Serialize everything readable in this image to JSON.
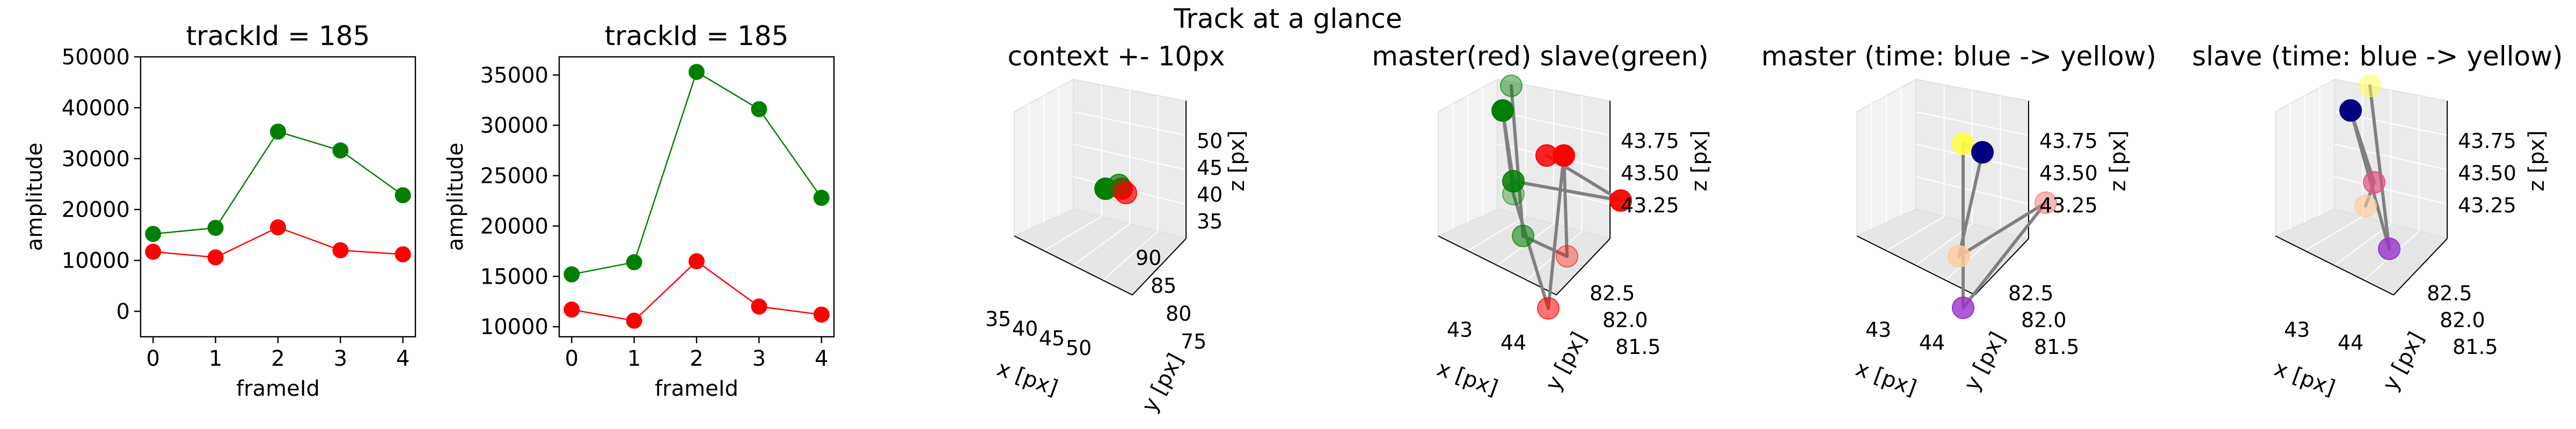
{
  "figure": {
    "suptitle": "Track at a glance"
  },
  "chart_data": [
    {
      "type": "line",
      "title": "trackId = 185",
      "xlabel": "frameId",
      "ylabel": "amplitude",
      "xlim": [
        -0.2,
        4.2
      ],
      "ylim": [
        -5000,
        50000
      ],
      "xticks": [
        0,
        1,
        2,
        3,
        4
      ],
      "yticks": [
        0,
        10000,
        20000,
        30000,
        40000,
        50000
      ],
      "x": [
        0,
        1,
        2,
        3,
        4
      ],
      "series": [
        {
          "values": [
            15200,
            16400,
            35300,
            31600,
            22800
          ],
          "color": "#008000"
        },
        {
          "values": [
            11700,
            10600,
            16500,
            12000,
            11200
          ],
          "color": "#ff0000"
        }
      ]
    },
    {
      "type": "line",
      "title": "trackId = 185",
      "xlabel": "frameId",
      "ylabel": "amplitude",
      "xlim": [
        -0.2,
        4.2
      ],
      "ylim": [
        9000,
        36800
      ],
      "xticks": [
        0,
        1,
        2,
        3,
        4
      ],
      "yticks": [
        10000,
        15000,
        20000,
        25000,
        30000,
        35000
      ],
      "x": [
        0,
        1,
        2,
        3,
        4
      ],
      "series": [
        {
          "values": [
            15200,
            16400,
            35300,
            31600,
            22800
          ],
          "color": "#008000"
        },
        {
          "values": [
            11700,
            10600,
            16500,
            12000,
            11200
          ],
          "color": "#ff0000"
        }
      ]
    },
    {
      "type": "scatter",
      "subtype": "3d",
      "title": "context +- 10px",
      "xlabel": "x [px]",
      "ylabel": "y [px]",
      "zlabel": "z [px]",
      "xticks": [
        "35",
        "40",
        "45",
        "50"
      ],
      "yticks": [
        "75",
        "80",
        "85",
        "90"
      ],
      "zticks": [
        "35",
        "40",
        "45",
        "50"
      ],
      "points": [
        {
          "color": "#008000",
          "opacity": 1.0
        },
        {
          "color": "#ff0000",
          "opacity": 1.0
        },
        {
          "color": "#008000",
          "opacity": 0.7
        },
        {
          "color": "#ff0000",
          "opacity": 0.7
        }
      ]
    },
    {
      "type": "scatter",
      "subtype": "3d",
      "title": "master(red) slave(green)",
      "xlabel": "x [px]",
      "ylabel": "y [px]",
      "zlabel": "z [px]",
      "xticks": [
        "43",
        "44"
      ],
      "yticks": [
        "81.5",
        "82.0",
        "82.5"
      ],
      "zticks": [
        "43.25",
        "43.50",
        "43.75"
      ],
      "points": [
        {
          "color": "#008000",
          "opacity": 0.45
        },
        {
          "color": "#008000",
          "opacity": 1.0
        },
        {
          "color": "#008000",
          "opacity": 0.85
        },
        {
          "color": "#008000",
          "opacity": 0.35
        },
        {
          "color": "#008000",
          "opacity": 0.55
        },
        {
          "color": "#ff0000",
          "opacity": 0.85
        },
        {
          "color": "#ff0000",
          "opacity": 1.0
        },
        {
          "color": "#ff0000",
          "opacity": 0.35
        },
        {
          "color": "#ff0000",
          "opacity": 0.55
        },
        {
          "color": "#ff0000",
          "opacity": 0.95
        }
      ]
    },
    {
      "type": "scatter",
      "subtype": "3d",
      "title": "master (time: blue -> yellow)",
      "xlabel": "x [px]",
      "ylabel": "y [px]",
      "zlabel": "z [px]",
      "xticks": [
        "43",
        "44"
      ],
      "yticks": [
        "81.5",
        "82.0",
        "82.5"
      ],
      "zticks": [
        "43.25",
        "43.50",
        "43.75"
      ],
      "points": [
        {
          "color": "#ffff44",
          "opacity": 0.9
        },
        {
          "color": "#000080",
          "opacity": 1.0
        },
        {
          "color": "#f08080",
          "opacity": 0.55
        },
        {
          "color": "#ffcc99",
          "opacity": 0.8
        },
        {
          "color": "#9933cc",
          "opacity": 0.8
        }
      ]
    },
    {
      "type": "scatter",
      "subtype": "3d",
      "title": "slave (time: blue -> yellow)",
      "xlabel": "x [px]",
      "ylabel": "y [px]",
      "zlabel": "z [px]",
      "xticks": [
        "43",
        "44"
      ],
      "yticks": [
        "81.5",
        "82.0",
        "82.5"
      ],
      "zticks": [
        "43.25",
        "43.50",
        "43.75"
      ],
      "points": [
        {
          "color": "#ffff44",
          "opacity": 0.5
        },
        {
          "color": "#000080",
          "opacity": 1.0
        },
        {
          "color": "#e05080",
          "opacity": 0.7
        },
        {
          "color": "#ffcc99",
          "opacity": 0.6
        },
        {
          "color": "#9933cc",
          "opacity": 0.8
        }
      ]
    }
  ]
}
